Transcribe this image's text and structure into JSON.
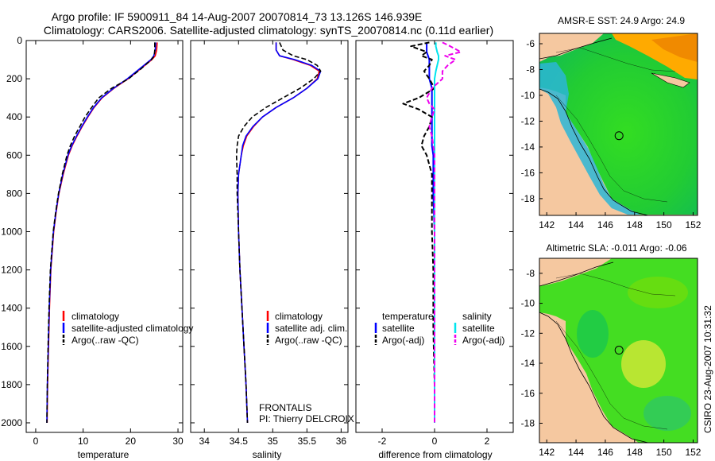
{
  "header": {
    "title_line1": "Argo profile: IF 5900911_84 14-Aug-2007 20070814_73 13.126S 146.939E",
    "title_line2": "Climatology: CARS2006. Satellite-adjusted climatology: synTS_20070814.nc (0.11d earlier)"
  },
  "colors": {
    "climatology": "#ff0000",
    "satellite": "#0000ff",
    "argo": "#000000",
    "salinity_sat": "#00e5ee",
    "salinity_argo": "#ee00ee",
    "land": "#f5c8a0",
    "sea_green": "#22cc22"
  },
  "chart_data": [
    {
      "type": "line",
      "id": "temperature",
      "xlabel": "temperature",
      "ylabel": "",
      "xlim": [
        -2,
        31
      ],
      "ylim": [
        2050,
        0
      ],
      "xticks": [
        0,
        10,
        20,
        30
      ],
      "yticks": [
        0,
        200,
        400,
        600,
        800,
        1000,
        1200,
        1400,
        1600,
        1800,
        2000
      ],
      "depth": [
        10,
        50,
        80,
        100,
        150,
        200,
        250,
        300,
        350,
        400,
        450,
        500,
        550,
        600,
        700,
        800,
        900,
        1000,
        1200,
        1400,
        1600,
        1800,
        2000
      ],
      "series": [
        {
          "name": "climatology",
          "values": [
            25.6,
            25.5,
            25.2,
            24.5,
            22.0,
            19.5,
            16.5,
            14.0,
            12.3,
            11.0,
            9.8,
            8.7,
            7.7,
            6.9,
            5.8,
            4.9,
            4.3,
            3.8,
            3.2,
            2.9,
            2.7,
            2.5,
            2.4
          ]
        },
        {
          "name": "satellite-adjusted climatology",
          "values": [
            25.3,
            25.2,
            24.9,
            24.3,
            21.8,
            19.3,
            16.4,
            13.9,
            12.2,
            10.9,
            9.7,
            8.6,
            7.6,
            6.8,
            5.7,
            4.85,
            4.25,
            3.75,
            3.15,
            2.85,
            2.65,
            2.45,
            2.35
          ]
        },
        {
          "name": "Argo(..raw -QC)",
          "values": [
            25.1,
            25.1,
            25.0,
            24.4,
            22.1,
            19.6,
            16.0,
            13.3,
            11.8,
            10.4,
            9.3,
            8.2,
            7.3,
            6.6,
            5.6,
            4.8,
            4.2,
            3.7,
            3.1,
            2.8,
            2.6,
            2.45,
            2.35
          ]
        }
      ],
      "legend": [
        "climatology",
        "satellite-adjusted climatology",
        "Argo(..raw -QC)"
      ]
    },
    {
      "type": "line",
      "id": "salinity",
      "xlabel": "salinity",
      "xlim": [
        33.8,
        36.1
      ],
      "ylim": [
        2050,
        0
      ],
      "xticks": [
        34,
        34.5,
        35,
        35.5,
        36
      ],
      "depth": [
        10,
        50,
        80,
        100,
        130,
        160,
        200,
        250,
        300,
        350,
        400,
        450,
        500,
        550,
        600,
        700,
        800,
        1000,
        1200,
        1400,
        1600,
        1800,
        2000
      ],
      "series": [
        {
          "name": "climatology",
          "values": [
            35.05,
            35.05,
            35.1,
            35.3,
            35.55,
            35.68,
            35.65,
            35.5,
            35.3,
            35.05,
            34.85,
            34.72,
            34.62,
            34.57,
            34.54,
            34.5,
            34.49,
            34.5,
            34.52,
            34.55,
            34.58,
            34.61,
            34.63
          ]
        },
        {
          "name": "satellite adj. clim.",
          "values": [
            35.05,
            35.05,
            35.1,
            35.32,
            35.57,
            35.7,
            35.66,
            35.5,
            35.3,
            35.05,
            34.85,
            34.71,
            34.61,
            34.56,
            34.54,
            34.5,
            34.49,
            34.5,
            34.52,
            34.55,
            34.58,
            34.61,
            34.63
          ]
        },
        {
          "name": "Argo(..raw -QC)",
          "values": [
            35.1,
            35.15,
            35.3,
            35.5,
            35.65,
            35.7,
            35.6,
            35.4,
            35.15,
            34.9,
            34.7,
            34.58,
            34.5,
            34.48,
            34.47,
            34.48,
            34.48,
            34.5,
            34.52,
            34.55,
            34.58,
            34.61,
            34.63
          ]
        }
      ],
      "legend": [
        "climatology",
        "satellite adj. clim.",
        "Argo(..raw -QC)"
      ],
      "annotation": [
        "FRONTALIS",
        "PI: Thierry DELCROIX"
      ]
    },
    {
      "type": "line",
      "id": "difference",
      "xlabel": "difference from climatology",
      "xlim": [
        -3,
        3
      ],
      "ylim": [
        2050,
        0
      ],
      "xticks": [
        -2,
        0,
        2
      ],
      "depth": [
        10,
        30,
        60,
        80,
        100,
        130,
        160,
        200,
        250,
        300,
        330,
        360,
        400,
        450,
        500,
        550,
        600,
        700,
        800,
        1000,
        1200,
        1500,
        1800,
        2000
      ],
      "series": [
        {
          "name": "temperature satellite",
          "group": "temperature",
          "values": [
            -0.3,
            -0.3,
            -0.3,
            -0.25,
            -0.2,
            -0.2,
            -0.2,
            -0.2,
            -0.1,
            -0.1,
            -0.1,
            -0.1,
            -0.1,
            -0.1,
            -0.1,
            -0.1,
            -0.05,
            -0.05,
            -0.05,
            0,
            0,
            0,
            0,
            0
          ]
        },
        {
          "name": "temperature Argo(-adj)",
          "group": "temperature",
          "values": [
            -0.2,
            -0.9,
            -0.3,
            -0.5,
            -0.1,
            -0.2,
            -0.4,
            -0.2,
            0.0,
            -0.6,
            -1.2,
            -0.6,
            -0.1,
            -0.2,
            -0.4,
            -0.5,
            -0.3,
            -0.1,
            -0.1,
            -0.1,
            -0.05,
            -0.05,
            0,
            0
          ]
        },
        {
          "name": "salinity satellite",
          "group": "salinity",
          "values": [
            0.05,
            0.05,
            0.1,
            0.15,
            0.15,
            0.1,
            0.05,
            0,
            0,
            0,
            0,
            0,
            0,
            0,
            0,
            0,
            0,
            0,
            0,
            0,
            0,
            0,
            0,
            0
          ]
        },
        {
          "name": "salinity Argo(-adj)",
          "group": "salinity",
          "values": [
            0.3,
            0.6,
            1.0,
            0.4,
            0.8,
            0.5,
            0.3,
            0.3,
            -0.1,
            -0.3,
            -0.2,
            0.0,
            -0.1,
            -0.2,
            -0.1,
            -0.05,
            0,
            0,
            0,
            0,
            0,
            0,
            0,
            0
          ]
        }
      ],
      "legend": [
        "temperature",
        "satellite",
        "Argo(-adj)",
        "salinity",
        "satellite",
        "Argo(-adj)"
      ]
    },
    {
      "type": "heatmap",
      "id": "sst_map",
      "title": "AMSR-E SST: 24.9 Argo: 24.9",
      "xlim": [
        141.5,
        152.3
      ],
      "ylim": [
        -19.3,
        -5.2
      ],
      "xticks": [
        142,
        144,
        146,
        148,
        150,
        152
      ],
      "yticks": [
        -6,
        -8,
        -10,
        -12,
        -14,
        -16,
        -18
      ],
      "marker": {
        "lon": 146.939,
        "lat": -13.126
      }
    },
    {
      "type": "heatmap",
      "id": "sla_map",
      "title": "Altimetric SLA: -0.011 Argo: -0.06",
      "xlim": [
        141.5,
        152.3
      ],
      "ylim": [
        -19.3,
        -7.0
      ],
      "xticks": [
        142,
        144,
        146,
        148,
        150,
        152
      ],
      "yticks": [
        -8,
        -10,
        -12,
        -14,
        -16,
        -18
      ],
      "marker": {
        "lon": 146.939,
        "lat": -13.126
      }
    }
  ],
  "footer": {
    "timestamp": "CSIRO 23-Aug-2007 10:31:32"
  }
}
